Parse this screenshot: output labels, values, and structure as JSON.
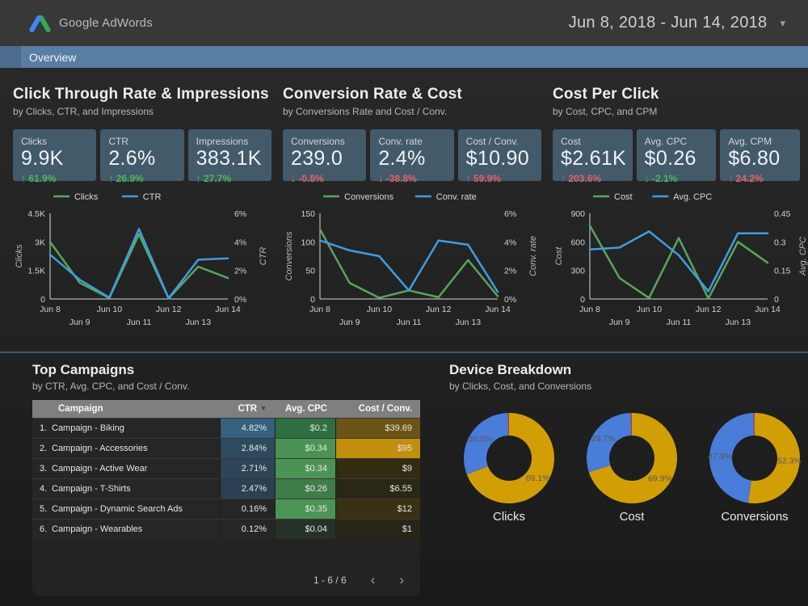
{
  "header": {
    "brand": "Google AdWords",
    "date_range": "Jun 8, 2018 - Jun 14, 2018"
  },
  "tab": {
    "label": "Overview"
  },
  "icons": {
    "caret_down": "▾",
    "sort_desc": "▼",
    "chevron_left": "‹",
    "chevron_right": "›",
    "arrow_up": "↑",
    "arrow_down": "↓"
  },
  "colors": {
    "accent_bar": "#587ea3",
    "card_bg": "#435a6b",
    "positive": "#4fb658",
    "negative": "#e2606b",
    "line_green": "#57a65c",
    "line_blue": "#3f9de0",
    "donut_gold": "#d29e06",
    "donut_blue": "#4a7cd9",
    "donut_red": "#c5392b"
  },
  "sections": [
    {
      "title": "Click Through Rate & Impressions",
      "subtitle": "by Clicks, CTR, and Impressions",
      "cards": [
        {
          "label": "Clicks",
          "value": "9.9K",
          "delta": "61.9%",
          "direction": "up",
          "trend": "positive"
        },
        {
          "label": "CTR",
          "value": "2.6%",
          "delta": "26.9%",
          "direction": "up",
          "trend": "positive"
        },
        {
          "label": "Impressions",
          "value": "383.1K",
          "delta": "27.7%",
          "direction": "up",
          "trend": "positive"
        }
      ]
    },
    {
      "title": "Conversion Rate & Cost",
      "subtitle": "by Conversions Rate and Cost / Conv.",
      "cards": [
        {
          "label": "Conversions",
          "value": "239.0",
          "delta": "-0.8%",
          "direction": "down",
          "trend": "negative"
        },
        {
          "label": "Conv. rate",
          "value": "2.4%",
          "delta": "-38.8%",
          "direction": "down",
          "trend": "negative"
        },
        {
          "label": "Cost / Conv.",
          "value": "$10.90",
          "delta": "59.9%",
          "direction": "up",
          "trend": "negative"
        }
      ]
    },
    {
      "title": "Cost Per Click",
      "subtitle": "by Cost, CPC, and CPM",
      "cards": [
        {
          "label": "Cost",
          "value": "$2.61K",
          "delta": "203.6%",
          "direction": "up",
          "trend": "negative"
        },
        {
          "label": "Avg. CPC",
          "value": "$0.26",
          "delta": "-2.1%",
          "direction": "down",
          "trend": "positive"
        },
        {
          "label": "Avg. CPM",
          "value": "$6.80",
          "delta": "24.2%",
          "direction": "up",
          "trend": "negative"
        }
      ]
    }
  ],
  "chart_data": [
    {
      "type": "line",
      "x": [
        "Jun 8",
        "Jun 9",
        "Jun 10",
        "Jun 11",
        "Jun 12",
        "Jun 13",
        "Jun 14"
      ],
      "series": [
        {
          "name": "Clicks",
          "axis": "left",
          "color": "#57a65c",
          "values": [
            3000,
            850,
            50,
            3400,
            30,
            1700,
            1100
          ]
        },
        {
          "name": "CTR",
          "axis": "right",
          "color": "#3f9de0",
          "values": [
            3.1,
            1.35,
            0.1,
            4.9,
            0.05,
            2.75,
            2.85
          ]
        }
      ],
      "left_axis": {
        "label": "Clicks",
        "ticks": [
          "0",
          "1.5K",
          "3K",
          "4.5K"
        ],
        "min": 0,
        "max": 4500
      },
      "right_axis": {
        "label": "CTR",
        "ticks": [
          "0%",
          "2%",
          "4%",
          "6%"
        ],
        "min": 0,
        "max": 6
      },
      "legend_position": "top",
      "grid": false
    },
    {
      "type": "line",
      "x": [
        "Jun 8",
        "Jun 9",
        "Jun 10",
        "Jun 11",
        "Jun 12",
        "Jun 13",
        "Jun 14"
      ],
      "series": [
        {
          "name": "Conversions",
          "axis": "left",
          "color": "#57a65c",
          "values": [
            122,
            28,
            2,
            15,
            3,
            68,
            5
          ]
        },
        {
          "name": "Conv. rate",
          "axis": "right",
          "color": "#3f9de0",
          "values": [
            4.1,
            3.4,
            3.0,
            0.6,
            4.1,
            3.8,
            0.5
          ]
        }
      ],
      "left_axis": {
        "label": "Conversions",
        "ticks": [
          "0",
          "50",
          "100",
          "150"
        ],
        "min": 0,
        "max": 150
      },
      "right_axis": {
        "label": "Conv. rate",
        "ticks": [
          "0%",
          "2%",
          "4%",
          "6%"
        ],
        "min": 0,
        "max": 6
      },
      "legend_position": "top",
      "grid": false
    },
    {
      "type": "line",
      "x": [
        "Jun 8",
        "Jun 9",
        "Jun 10",
        "Jun 11",
        "Jun 12",
        "Jun 13",
        "Jun 14"
      ],
      "series": [
        {
          "name": "Cost",
          "axis": "left",
          "color": "#57a65c",
          "values": [
            770,
            220,
            10,
            640,
            5,
            600,
            380
          ]
        },
        {
          "name": "Avg. CPC",
          "axis": "right",
          "color": "#3f9de0",
          "values": [
            0.26,
            0.27,
            0.355,
            0.23,
            0.04,
            0.345,
            0.345
          ]
        }
      ],
      "left_axis": {
        "label": "Cost",
        "ticks": [
          "0",
          "300",
          "600",
          "900"
        ],
        "min": 0,
        "max": 900
      },
      "right_axis": {
        "label": "Avg. CPC",
        "ticks": [
          "0",
          "0.15",
          "0.3",
          "0.45"
        ],
        "min": 0,
        "max": 0.45
      },
      "legend_position": "top",
      "grid": false
    },
    {
      "type": "pie",
      "label": "Clicks",
      "slices": [
        {
          "value": 69.1,
          "label": "69.1%",
          "color": "#d29e06"
        },
        {
          "value": 30.5,
          "label": "30.5%",
          "color": "#4a7cd9"
        },
        {
          "value": 0.4,
          "label": "",
          "color": "#c5392b"
        }
      ]
    },
    {
      "type": "pie",
      "label": "Cost",
      "slices": [
        {
          "value": 69.9,
          "label": "69.9%",
          "color": "#d29e06"
        },
        {
          "value": 29.7,
          "label": "29.7%",
          "color": "#4a7cd9"
        },
        {
          "value": 0.4,
          "label": "",
          "color": "#c5392b"
        }
      ]
    },
    {
      "type": "pie",
      "label": "Conversions",
      "slices": [
        {
          "value": 52.3,
          "label": "52.3%",
          "color": "#d29e06"
        },
        {
          "value": 47.3,
          "label": "47.3%",
          "color": "#4a7cd9"
        },
        {
          "value": 0.4,
          "label": "",
          "color": "#c5392b"
        }
      ]
    }
  ],
  "top_campaigns": {
    "title": "Top Campaigns",
    "subtitle": "by CTR, Avg. CPC, and Cost / Conv.",
    "columns": [
      "Campaign",
      "CTR",
      "Avg. CPC",
      "Cost / Conv."
    ],
    "sorted_column": "CTR",
    "rows": [
      {
        "rank": "1.",
        "name": "Campaign - Biking",
        "ctr": "4.82%",
        "cpc": "$0.2",
        "cost_conv": "$39.69",
        "ctr_bg": "#36607e",
        "cpc_bg": "#2f6e43",
        "cost_bg": "#6b5416"
      },
      {
        "rank": "2.",
        "name": "Campaign - Accessories",
        "ctr": "2.84%",
        "cpc": "$0.34",
        "cost_conv": "$95",
        "ctr_bg": "#2e4a5d",
        "cpc_bg": "#4b9355",
        "cost_bg": "#c28e0e"
      },
      {
        "rank": "3.",
        "name": "Campaign - Active Wear",
        "ctr": "2.71%",
        "cpc": "$0.34",
        "cost_conv": "$9",
        "ctr_bg": "#2c4557",
        "cpc_bg": "#4b9355",
        "cost_bg": "#332c13"
      },
      {
        "rank": "4.",
        "name": "Campaign - T-Shirts",
        "ctr": "2.47%",
        "cpc": "$0.26",
        "cost_conv": "$6.55",
        "ctr_bg": "#2b4153",
        "cpc_bg": "#3f7d4b",
        "cost_bg": "#2b2717"
      },
      {
        "rank": "5.",
        "name": "Campaign - Dynamic Search Ads",
        "ctr": "0.16%",
        "cpc": "$0.35",
        "cost_conv": "$12",
        "ctr_bg": "",
        "cpc_bg": "#4c9456",
        "cost_bg": "#3a3115"
      },
      {
        "rank": "6.",
        "name": "Campaign - Wearables",
        "ctr": "0.12%",
        "cpc": "$0.04",
        "cost_conv": "$1",
        "ctr_bg": "",
        "cpc_bg": "#263227",
        "cost_bg": "#282417"
      }
    ],
    "pagination": "1 - 6 / 6"
  },
  "device_breakdown": {
    "title": "Device Breakdown",
    "subtitle": "by Clicks, Cost, and Conversions"
  }
}
